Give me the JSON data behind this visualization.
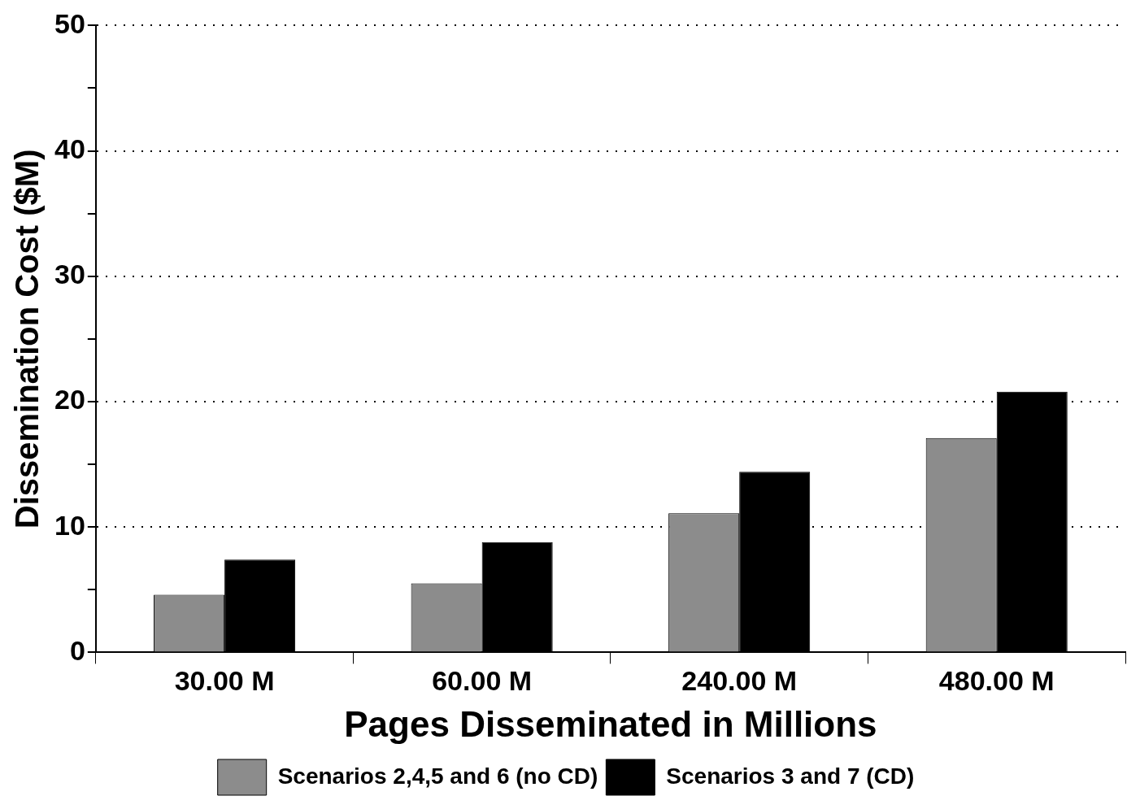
{
  "chart_data": {
    "type": "bar",
    "xlabel": "Pages Disseminated in Millions",
    "ylabel": "Dissemination Cost ($M)",
    "categories": [
      "30.00 M",
      "60.00 M",
      "240.00 M",
      "480.00 M"
    ],
    "series": [
      {
        "name": "Scenarios 2,4,5 and 6 (no CD)",
        "color": "#8c8c8c",
        "values": [
          4.6,
          5.5,
          11.1,
          17.1
        ]
      },
      {
        "name": "Scenarios 3 and 7 (CD)",
        "color": "#000000",
        "values": [
          7.4,
          8.8,
          14.4,
          20.8
        ]
      }
    ],
    "ylim": [
      0,
      50
    ],
    "yticks": [
      0,
      {
        "value": 5,
        "label": null
      },
      10,
      {
        "value": 15,
        "label": null
      },
      20,
      {
        "value": 25,
        "label": null
      },
      30,
      {
        "value": 35,
        "label": null
      },
      40,
      {
        "value": 45,
        "label": null
      },
      50
    ],
    "grid": "y",
    "line_style": "dotted",
    "legend": "bottom"
  }
}
